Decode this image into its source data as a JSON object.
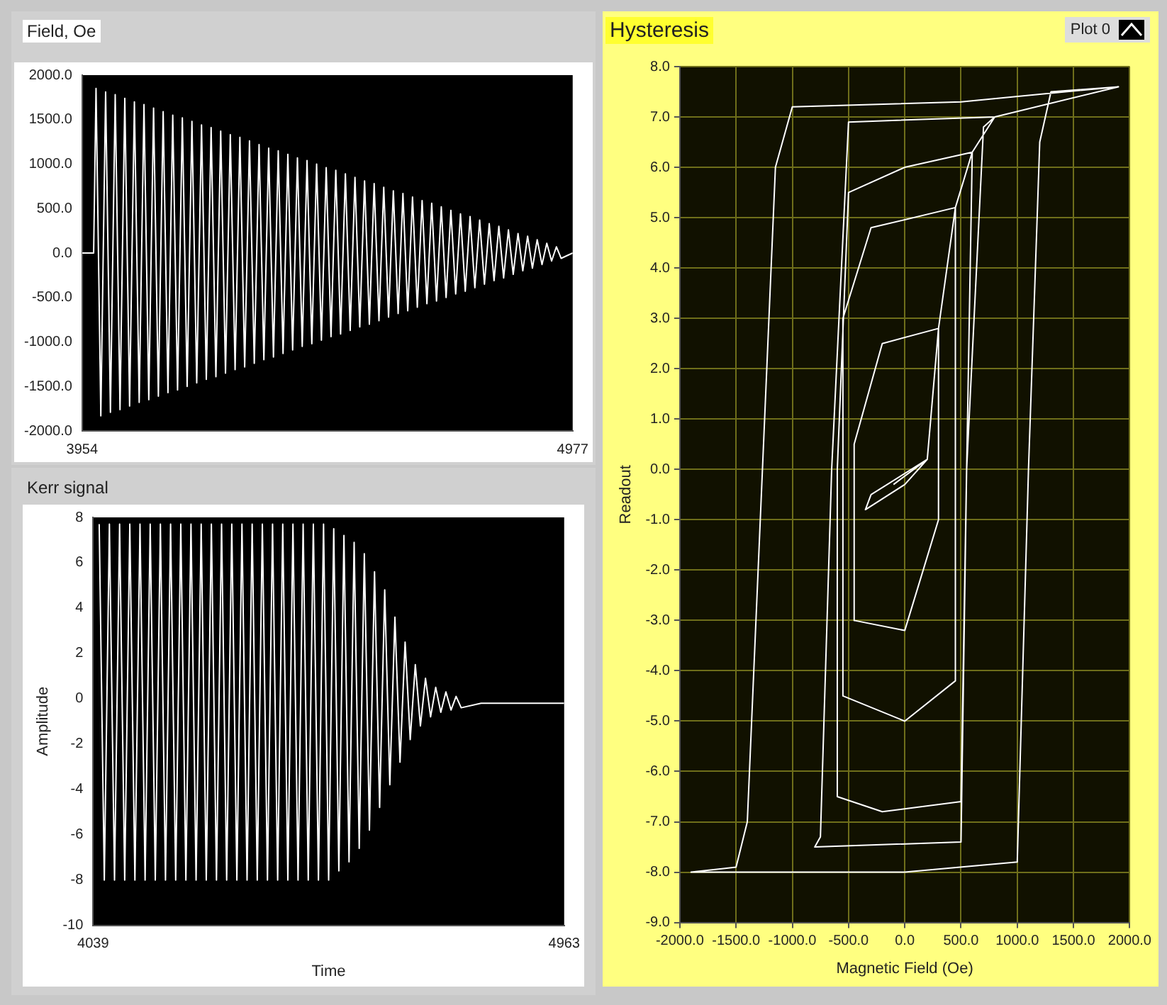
{
  "chart_data": [
    {
      "type": "line",
      "title": "Field, Oe",
      "xlim": [
        3954,
        4977
      ],
      "xticks": [
        3954,
        4977
      ],
      "ylim": [
        -2000,
        2000
      ],
      "yticks": [
        {
          "value": -2000,
          "label": "-2000.0"
        },
        {
          "value": -1500,
          "label": "-1500.0"
        },
        {
          "value": -1000,
          "label": "-1000.0"
        },
        {
          "value": -500,
          "label": "-500.0"
        },
        {
          "value": 0,
          "label": "0.0"
        },
        {
          "value": 500,
          "label": "500.0"
        },
        {
          "value": 1000,
          "label": "1000.0"
        },
        {
          "value": 1500,
          "label": "1500.0"
        },
        {
          "value": 2000,
          "label": "2000.0"
        }
      ],
      "grid": false,
      "marker": "none",
      "series": [
        {
          "color": "#ffffff",
          "x": [
            3954,
            3978,
            3983,
            3993,
            4003,
            4013,
            4023,
            4033,
            4043,
            4053,
            4063,
            4073,
            4083,
            4093,
            4103,
            4113,
            4123,
            4133,
            4143,
            4153,
            4163,
            4173,
            4183,
            4193,
            4203,
            4213,
            4223,
            4233,
            4243,
            4253,
            4263,
            4273,
            4283,
            4293,
            4303,
            4313,
            4323,
            4333,
            4343,
            4353,
            4363,
            4373,
            4383,
            4393,
            4403,
            4413,
            4423,
            4433,
            4443,
            4453,
            4463,
            4473,
            4483,
            4493,
            4503,
            4513,
            4523,
            4533,
            4543,
            4553,
            4563,
            4573,
            4583,
            4593,
            4603,
            4613,
            4623,
            4633,
            4643,
            4653,
            4663,
            4673,
            4683,
            4693,
            4703,
            4713,
            4723,
            4733,
            4743,
            4753,
            4763,
            4773,
            4783,
            4793,
            4803,
            4813,
            4823,
            4833,
            4843,
            4853,
            4863,
            4873,
            4883,
            4893,
            4903,
            4913,
            4923,
            4933,
            4943,
            4953,
            4977
          ],
          "values": [
            0,
            0,
            1850,
            -1830,
            1810,
            -1790,
            1780,
            -1760,
            1740,
            -1720,
            1700,
            -1680,
            1670,
            -1650,
            1630,
            -1610,
            1590,
            -1570,
            1550,
            -1540,
            1520,
            -1500,
            1480,
            -1460,
            1440,
            -1420,
            1410,
            -1390,
            1370,
            -1350,
            1330,
            -1310,
            1300,
            -1280,
            1260,
            -1240,
            1220,
            -1200,
            1180,
            -1170,
            1150,
            -1130,
            1110,
            -1090,
            1070,
            -1050,
            1040,
            -1020,
            1000,
            -980,
            960,
            -940,
            930,
            -910,
            890,
            -870,
            850,
            -830,
            810,
            -800,
            780,
            -760,
            740,
            -720,
            700,
            -680,
            670,
            -650,
            630,
            -610,
            590,
            -570,
            560,
            -540,
            520,
            -500,
            480,
            -460,
            440,
            -430,
            410,
            -390,
            370,
            -350,
            330,
            -310,
            300,
            -280,
            260,
            -240,
            220,
            -200,
            190,
            -170,
            150,
            -130,
            110,
            -90,
            70,
            -60,
            0
          ]
        }
      ]
    },
    {
      "type": "line",
      "title": "Kerr signal",
      "xlabel": "Time",
      "ylabel": "Amplitude",
      "xlim": [
        4039,
        4963
      ],
      "xticks": [
        4039,
        4963
      ],
      "ylim": [
        -10,
        8
      ],
      "yticks": [
        -10,
        -8,
        -6,
        -4,
        -2,
        0,
        2,
        4,
        6,
        8
      ],
      "grid": false,
      "marker": "none",
      "series": [
        {
          "color": "#ffffff",
          "x": [
            4051,
            4061,
            4071,
            4081,
            4091,
            4101,
            4111,
            4121,
            4131,
            4141,
            4151,
            4161,
            4171,
            4181,
            4191,
            4201,
            4211,
            4221,
            4231,
            4241,
            4251,
            4261,
            4271,
            4281,
            4291,
            4301,
            4311,
            4321,
            4331,
            4341,
            4351,
            4361,
            4371,
            4381,
            4391,
            4401,
            4411,
            4421,
            4431,
            4441,
            4451,
            4461,
            4471,
            4481,
            4491,
            4501,
            4511,
            4521,
            4531,
            4541,
            4551,
            4561,
            4571,
            4581,
            4591,
            4601,
            4611,
            4621,
            4631,
            4641,
            4651,
            4661,
            4671,
            4681,
            4691,
            4701,
            4711,
            4721,
            4731,
            4741,
            4751,
            4761,
            4800,
            4963
          ],
          "values": [
            7.7,
            -8,
            7.7,
            -8,
            7.7,
            -8,
            7.7,
            -8,
            7.7,
            -8,
            7.7,
            -8,
            7.7,
            -8,
            7.7,
            -8,
            7.7,
            -8,
            7.7,
            -8,
            7.7,
            -8,
            7.7,
            -8,
            7.7,
            -8,
            7.7,
            -8,
            7.7,
            -8,
            7.7,
            -8,
            7.7,
            -8,
            7.7,
            -8,
            7.7,
            -8,
            7.7,
            -8,
            7.7,
            -8,
            7.7,
            -8,
            7.7,
            -8,
            7.5,
            -7.6,
            7.2,
            -7.2,
            6.9,
            -6.6,
            6.4,
            -5.8,
            5.6,
            -4.8,
            4.8,
            -3.8,
            3.6,
            -2.8,
            2.5,
            -1.8,
            1.5,
            -1.2,
            0.9,
            -0.8,
            0.5,
            -0.6,
            0.3,
            -0.5,
            0.1,
            -0.4,
            -0.2,
            -0.2
          ]
        }
      ]
    },
    {
      "type": "line",
      "title": "Hysteresis",
      "xlabel": "Magnetic Field (Oe)",
      "ylabel": "Readout",
      "legend": "top right",
      "grid": true,
      "marker": "none",
      "xlim": [
        -2000,
        2000
      ],
      "xticks": [
        {
          "value": -2000,
          "label": "-2000.0"
        },
        {
          "value": -1500,
          "label": "-1500.0"
        },
        {
          "value": -1000,
          "label": "-1000.0"
        },
        {
          "value": -500,
          "label": "-500.0"
        },
        {
          "value": 0,
          "label": "0.0"
        },
        {
          "value": 500,
          "label": "500.0"
        },
        {
          "value": 1000,
          "label": "1000.0"
        },
        {
          "value": 1500,
          "label": "1500.0"
        },
        {
          "value": 2000,
          "label": "2000.0"
        }
      ],
      "ylim": [
        -9,
        8
      ],
      "yticks": [
        {
          "value": -9,
          "label": "-9.0"
        },
        {
          "value": -8,
          "label": "-8.0"
        },
        {
          "value": -7,
          "label": "-7.0"
        },
        {
          "value": -6,
          "label": "-6.0"
        },
        {
          "value": -5,
          "label": "-5.0"
        },
        {
          "value": -4,
          "label": "-4.0"
        },
        {
          "value": -3,
          "label": "-3.0"
        },
        {
          "value": -2,
          "label": "-2.0"
        },
        {
          "value": -1,
          "label": "-1.0"
        },
        {
          "value": 0,
          "label": "0.0"
        },
        {
          "value": 1,
          "label": "1.0"
        },
        {
          "value": 2,
          "label": "2.0"
        },
        {
          "value": 3,
          "label": "3.0"
        },
        {
          "value": 4,
          "label": "4.0"
        },
        {
          "value": 5,
          "label": "5.0"
        },
        {
          "value": 6,
          "label": "6.0"
        },
        {
          "value": 7,
          "label": "7.0"
        },
        {
          "value": 8,
          "label": "8.0"
        }
      ],
      "series": [
        {
          "name": "Plot 0",
          "color": "#ffffff",
          "x": [
            1900,
            500,
            -1000,
            -1150,
            -1400,
            -1500,
            -1900,
            0,
            1000,
            1100,
            1200,
            1300,
            1900,
            800,
            -500,
            -650,
            -750,
            -800,
            500,
            550,
            700,
            800,
            600,
            0,
            -500,
            -600,
            -600,
            -200,
            500,
            550,
            600,
            450,
            -300,
            -550,
            -550,
            0,
            450,
            450,
            300,
            -200,
            -450,
            -450,
            0,
            300,
            300,
            200,
            -300,
            -350,
            0,
            200,
            -100
          ],
          "values": [
            7.6,
            7.3,
            7.2,
            6,
            -7,
            -7.9,
            -8,
            -8,
            -7.8,
            0,
            6.5,
            7.5,
            7.6,
            7,
            6.9,
            0,
            -7.3,
            -7.5,
            -7.4,
            0,
            6.8,
            7,
            6.3,
            6,
            5.5,
            0,
            -6.5,
            -6.8,
            -6.6,
            0,
            6.3,
            5.2,
            4.8,
            3,
            -4.5,
            -5,
            -4.2,
            5.2,
            2.8,
            2.5,
            0.5,
            -3,
            -3.2,
            -1,
            2.8,
            0.2,
            -0.5,
            -0.8,
            -0.3,
            0.2,
            -0.3
          ]
        }
      ]
    }
  ]
}
